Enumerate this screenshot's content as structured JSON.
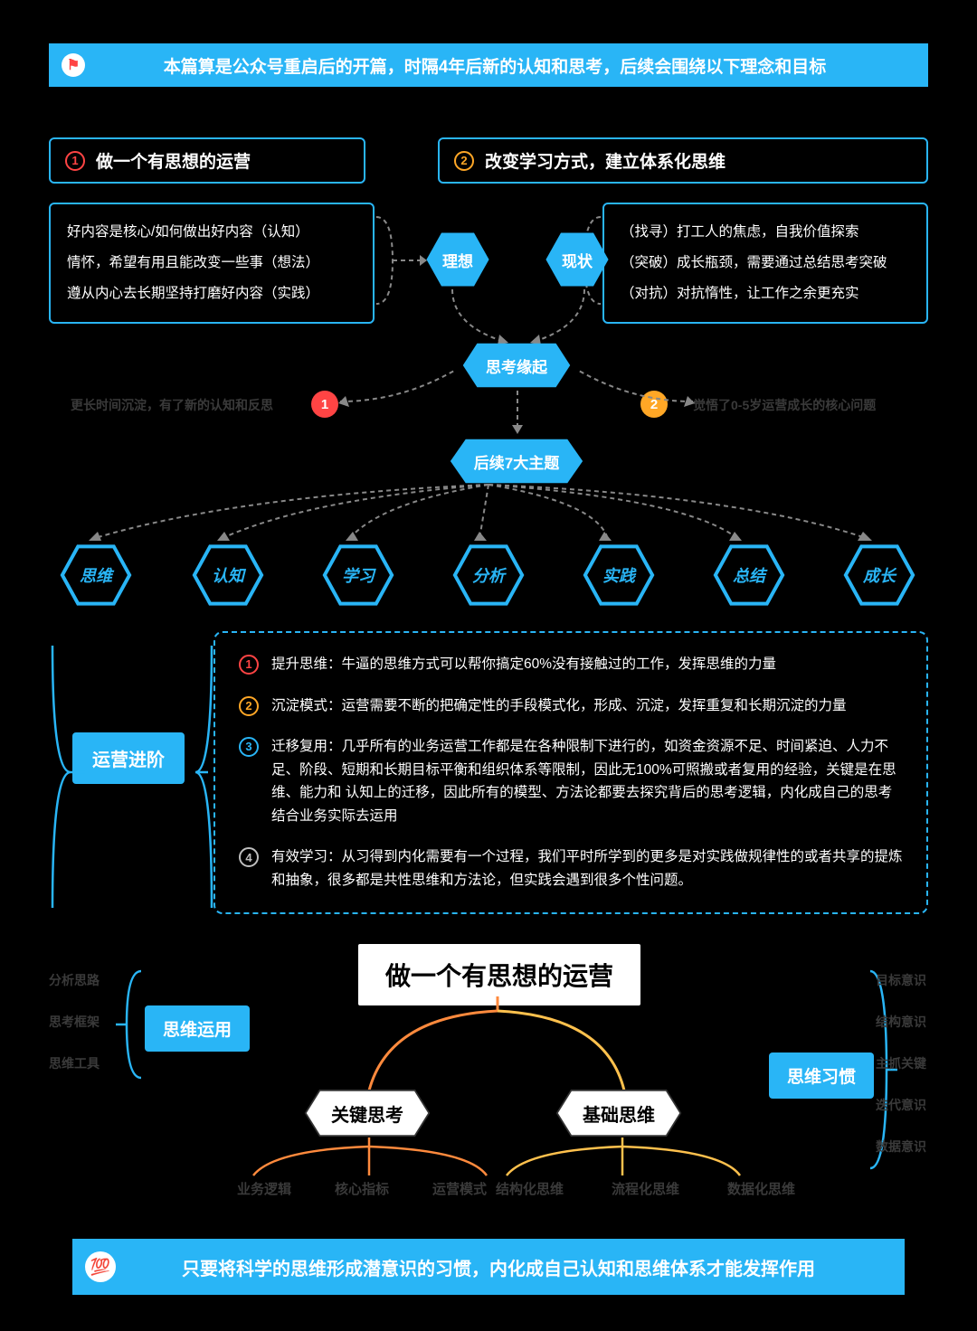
{
  "colors": {
    "primary": "#29b5f6",
    "bg": "#000",
    "red": "#f44",
    "orange": "#ffa726",
    "gray": "#bfbfbf",
    "faint": "#3a3a3a",
    "orangeLine": "#ff8a3d"
  },
  "topBanner": {
    "text": "本篇算是公众号重启后的开篇，时隔4年后新的认知和思考，后续会围绕以下理念和目标",
    "flag": "⚑"
  },
  "goals": [
    {
      "num": "1",
      "color": "#f44",
      "text": "做一个有思想的运营"
    },
    {
      "num": "2",
      "color": "#ffa726",
      "text": "改变学习方式，建立体系化思维"
    }
  ],
  "leftDetail": [
    "好内容是核心/如何做出好内容（认知）",
    "情怀，希望有用且能改变一些事（想法）",
    "遵从内心去长期坚持打磨好内容（实践）"
  ],
  "rightDetail": [
    "（找寻）打工人的焦虑，自我价值探索",
    "（突破）成长瓶颈，需要通过总结思考突破",
    "（对抗）对抗惰性，让工作之余更充实"
  ],
  "midHex": {
    "ideal": "理想",
    "current": "现状",
    "origin": "思考缘起",
    "followup": "后续7大主题"
  },
  "originNotes": {
    "left": "更长时间沉淀，有了新的认知和反思",
    "right": "觉悟了0-5岁运营成长的核心问题"
  },
  "originBadges": [
    {
      "num": "1",
      "color": "#f44"
    },
    {
      "num": "2",
      "color": "#ffa726"
    }
  ],
  "sevenThemes": [
    "思维",
    "认知",
    "学习",
    "分析",
    "实践",
    "总结",
    "成长"
  ],
  "advance": {
    "tag": "运营进阶",
    "items": [
      {
        "num": "1",
        "color": "#f44",
        "text": "提升思维：牛逼的思维方式可以帮你搞定60%没有接触过的工作，发挥思维的力量"
      },
      {
        "num": "2",
        "color": "#ffa726",
        "text": "沉淀模式：运营需要不断的把确定性的手段模式化，形成、沉淀，发挥重复和长期沉淀的力量"
      },
      {
        "num": "3",
        "color": "#29b5f6",
        "text": "迁移复用：几乎所有的业务运营工作都是在各种限制下进行的，如资金资源不足、时间紧迫、人力不足、阶段、短期和长期目标平衡和组织体系等限制，因此无100%可照搬或者复用的经验，关键是在思维、能力和 认知上的迁移，因此所有的模型、方法论都要去探究背后的思考逻辑，内化成自己的思考结合业务实际去运用"
      },
      {
        "num": "4",
        "color": "#bfbfbf",
        "text": "有效学习：从习得到内化需要有一个过程，我们平时所学到的更多是对实践做规律性的或者共享的提炼和抽象，很多都是共性思维和方法论，但实践会遇到很多个性问题。"
      }
    ]
  },
  "bottom": {
    "title": "做一个有思想的运营",
    "leftTag": "思维运用",
    "leftItems": [
      "分析思路",
      "思考框架",
      "思维工具"
    ],
    "rightTag": "思维习惯",
    "rightItems": [
      "目标意识",
      "结构意识",
      "主抓关键",
      "迭代意识",
      "数据意识"
    ],
    "keyHex": "关键思考",
    "baseHex": "基础思维",
    "keyLeaves": [
      "业务逻辑",
      "核心指标",
      "运营模式"
    ],
    "baseLeaves": [
      "结构化思维",
      "流程化思维",
      "数据化思维"
    ]
  },
  "bottomBanner": {
    "emoji": "💯",
    "text": "只要将科学的思维形成潜意识的习惯，内化成自己认知和思维体系才能发挥作用"
  }
}
